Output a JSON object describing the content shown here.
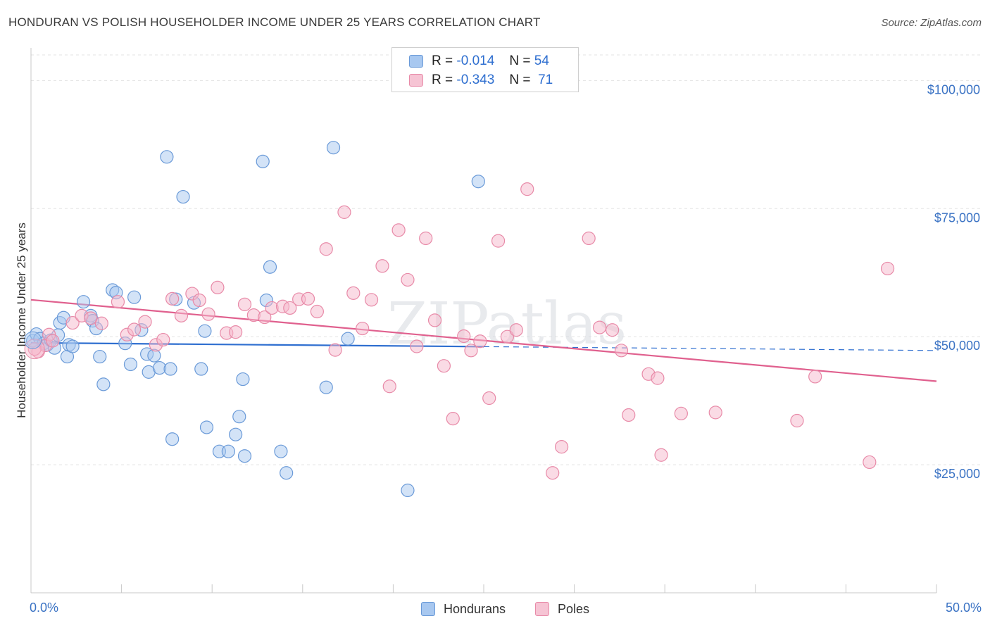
{
  "title": "HONDURAN VS POLISH HOUSEHOLDER INCOME UNDER 25 YEARS CORRELATION CHART",
  "source": "Source: ZipAtlas.com",
  "watermark": "ZIPatlas",
  "colors": {
    "blue_fill": "#a8c8f0",
    "blue_stroke": "#6a9ad8",
    "blue_line": "#2f6fd0",
    "pink_fill": "#f6b8cc",
    "pink_stroke": "#e88aa8",
    "pink_line": "#e0608e",
    "grid": "#e3e3e3",
    "tick_text": "#3b73c4"
  },
  "legend_top": {
    "rows": [
      {
        "r_label": "R =",
        "r_value": "-0.014",
        "n_label": "N =",
        "n_value": "54"
      },
      {
        "r_label": "R =",
        "r_value": "-0.343",
        "n_label": "N =",
        "n_value": "71"
      }
    ]
  },
  "legend_bottom": {
    "items": [
      "Hondurans",
      "Poles"
    ]
  },
  "chart_data": {
    "type": "scatter",
    "xlabel": "",
    "ylabel": "Householder Income Under 25 years",
    "xlim": [
      0,
      50
    ],
    "ylim": [
      0,
      105000
    ],
    "x_tick_labels": [
      "0.0%",
      "50.0%"
    ],
    "y_ticks": [
      25000,
      50000,
      75000,
      100000
    ],
    "y_tick_labels": [
      "$25,000",
      "$50,000",
      "$75,000",
      "$100,000"
    ],
    "grid": true,
    "series": [
      {
        "name": "Hondurans",
        "r": -0.014,
        "n": 54,
        "trend": {
          "x0": 0,
          "y0": 48800,
          "x1": 50,
          "y1": 47300,
          "solid_until": 25
        },
        "points": [
          [
            0.1,
            49200
          ],
          [
            0.3,
            50500
          ],
          [
            0.5,
            49600
          ],
          [
            0.7,
            48700
          ],
          [
            0.9,
            48400
          ],
          [
            1.1,
            49300
          ],
          [
            1.3,
            47800
          ],
          [
            1.6,
            52700
          ],
          [
            1.8,
            53700
          ],
          [
            2.0,
            46100
          ],
          [
            2.1,
            48400
          ],
          [
            2.3,
            48100
          ],
          [
            2.9,
            56800
          ],
          [
            3.3,
            54100
          ],
          [
            3.4,
            53100
          ],
          [
            3.6,
            51600
          ],
          [
            3.8,
            46100
          ],
          [
            4.5,
            59100
          ],
          [
            4.7,
            58600
          ],
          [
            5.2,
            48700
          ],
          [
            5.5,
            44600
          ],
          [
            5.7,
            57700
          ],
          [
            6.1,
            51300
          ],
          [
            6.4,
            46600
          ],
          [
            6.5,
            43100
          ],
          [
            6.8,
            46300
          ],
          [
            7.1,
            43900
          ],
          [
            7.5,
            85100
          ],
          [
            7.7,
            43700
          ],
          [
            7.8,
            30000
          ],
          [
            8.0,
            57300
          ],
          [
            8.4,
            77300
          ],
          [
            9.0,
            56600
          ],
          [
            9.4,
            43700
          ],
          [
            9.6,
            51100
          ],
          [
            9.7,
            32300
          ],
          [
            10.4,
            27600
          ],
          [
            10.9,
            27600
          ],
          [
            11.3,
            30900
          ],
          [
            11.5,
            34400
          ],
          [
            11.7,
            41700
          ],
          [
            11.8,
            26700
          ],
          [
            12.8,
            84200
          ],
          [
            13.0,
            57100
          ],
          [
            13.2,
            63600
          ],
          [
            13.8,
            27600
          ],
          [
            14.1,
            23400
          ],
          [
            16.3,
            40100
          ],
          [
            16.7,
            86900
          ],
          [
            17.5,
            49600
          ],
          [
            20.8,
            20000
          ],
          [
            24.7,
            80300
          ],
          [
            1.5,
            50300
          ],
          [
            4.0,
            40700
          ]
        ]
      },
      {
        "name": "Poles",
        "r": -0.343,
        "n": 71,
        "trend": {
          "x0": 0,
          "y0": 57200,
          "x1": 50,
          "y1": 41300
        },
        "points": [
          [
            0.4,
            47100
          ],
          [
            0.8,
            48300
          ],
          [
            1.0,
            50400
          ],
          [
            1.2,
            49200
          ],
          [
            2.3,
            52700
          ],
          [
            2.8,
            54100
          ],
          [
            3.3,
            53600
          ],
          [
            3.9,
            52600
          ],
          [
            4.8,
            56800
          ],
          [
            5.3,
            50400
          ],
          [
            5.7,
            51400
          ],
          [
            6.3,
            52900
          ],
          [
            6.9,
            48400
          ],
          [
            7.3,
            49400
          ],
          [
            7.8,
            57400
          ],
          [
            8.3,
            54100
          ],
          [
            8.9,
            58400
          ],
          [
            9.3,
            57100
          ],
          [
            9.8,
            54400
          ],
          [
            10.3,
            59600
          ],
          [
            10.8,
            50700
          ],
          [
            11.3,
            50900
          ],
          [
            11.8,
            56300
          ],
          [
            12.3,
            54200
          ],
          [
            12.9,
            53800
          ],
          [
            13.3,
            55600
          ],
          [
            13.9,
            55900
          ],
          [
            14.3,
            55600
          ],
          [
            14.8,
            57300
          ],
          [
            15.3,
            57400
          ],
          [
            15.8,
            54900
          ],
          [
            16.3,
            67100
          ],
          [
            16.8,
            47400
          ],
          [
            17.3,
            74300
          ],
          [
            17.8,
            58500
          ],
          [
            18.3,
            51600
          ],
          [
            18.8,
            57200
          ],
          [
            19.4,
            63800
          ],
          [
            19.8,
            40300
          ],
          [
            20.3,
            70800
          ],
          [
            20.8,
            61100
          ],
          [
            21.3,
            48100
          ],
          [
            21.8,
            69200
          ],
          [
            22.3,
            53200
          ],
          [
            22.8,
            44300
          ],
          [
            23.3,
            34000
          ],
          [
            23.9,
            50100
          ],
          [
            24.3,
            47300
          ],
          [
            24.8,
            49100
          ],
          [
            25.3,
            38000
          ],
          [
            25.8,
            68700
          ],
          [
            26.3,
            50000
          ],
          [
            26.8,
            51300
          ],
          [
            27.4,
            78800
          ],
          [
            28.8,
            23400
          ],
          [
            29.3,
            28500
          ],
          [
            30.8,
            69200
          ],
          [
            31.4,
            51800
          ],
          [
            32.1,
            51300
          ],
          [
            32.6,
            47300
          ],
          [
            33.0,
            34700
          ],
          [
            34.1,
            42700
          ],
          [
            34.6,
            41900
          ],
          [
            34.8,
            26900
          ],
          [
            35.9,
            35000
          ],
          [
            37.8,
            35200
          ],
          [
            42.3,
            33600
          ],
          [
            43.3,
            42200
          ],
          [
            46.3,
            25500
          ],
          [
            47.3,
            63300
          ],
          [
            0.2,
            47600
          ]
        ]
      }
    ]
  }
}
